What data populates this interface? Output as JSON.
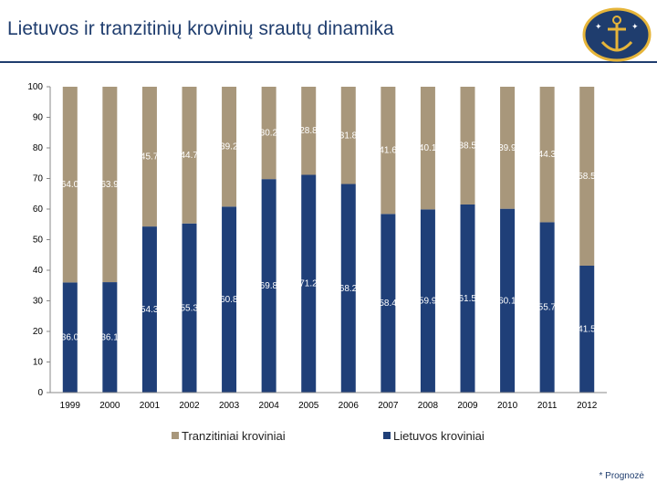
{
  "page": {
    "title": "Lietuvos ir tranzitinių krovinių srautų dinamika",
    "footnote": "* Prognozė"
  },
  "colors": {
    "title": "#1f3d6e",
    "lietuvos": "#1f3f78",
    "tranzitiniai": "#a8977b",
    "logo_bg": "#1f3d6e",
    "logo_accent": "#e6b53a"
  },
  "chart_data": {
    "type": "bar",
    "stacked": true,
    "title": "",
    "xlabel": "",
    "ylabel": "",
    "ylim": [
      0,
      100
    ],
    "yticks": [
      0,
      10,
      20,
      30,
      40,
      50,
      60,
      70,
      80,
      90,
      100
    ],
    "categories": [
      "1999",
      "2000",
      "2001",
      "2002",
      "2003",
      "2004",
      "2005",
      "2006",
      "2007",
      "2008",
      "2009",
      "2010",
      "2011",
      "2012"
    ],
    "series": [
      {
        "name": "Lietuvos kroviniai",
        "values": [
          36.0,
          36.1,
          54.3,
          55.3,
          60.8,
          69.8,
          71.2,
          68.2,
          58.4,
          59.9,
          61.5,
          60.1,
          55.7,
          41.5
        ]
      },
      {
        "name": "Tranzitiniai kroviniai",
        "values": [
          64.0,
          63.9,
          45.7,
          44.7,
          39.2,
          30.2,
          28.8,
          31.8,
          41.6,
          40.1,
          38.5,
          39.9,
          44.3,
          58.5
        ]
      }
    ],
    "legend": [
      "Tranzitiniai kroviniai",
      "Lietuvos kroviniai"
    ],
    "legend_position": "bottom"
  }
}
